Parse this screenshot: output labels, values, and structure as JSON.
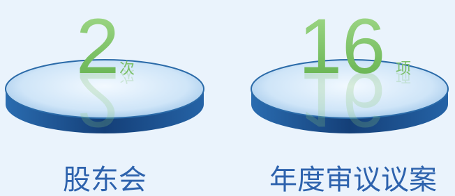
{
  "items": [
    {
      "number": "2",
      "unit": "次",
      "label": "股东会"
    },
    {
      "number": "16",
      "unit": "项",
      "label": "年度审议议案"
    }
  ]
}
